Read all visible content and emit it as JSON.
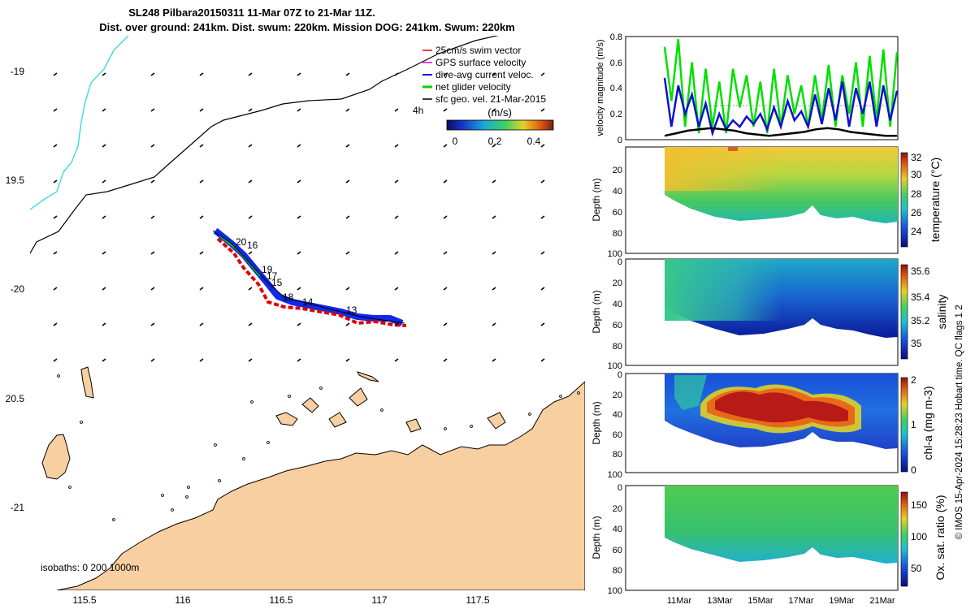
{
  "title_line1": "SL248 Pilbara20150311 11-Mar 07Z to 21-Mar 11Z.",
  "title_line2": "Dist. over ground: 241km. Dist. swum: 220km. Mission DOG: 241km. Swum: 220km",
  "credit": "© IMOS 15-Apr-2024 15:28:23 Hobart time. QC flags 1  2",
  "map": {
    "legend": [
      {
        "label": "25cm/s swim vector",
        "color": "#e00000"
      },
      {
        "label": "GPS surface velocity",
        "color": "#e000e0"
      },
      {
        "label": "dive-avg current veloc.",
        "color": "#0000e0"
      },
      {
        "label": "net glider velocity",
        "color": "#00d000"
      },
      {
        "label": "sfc geo. vel. 21-Mar-2015",
        "color": "#000000"
      }
    ],
    "colorbar": {
      "title": "(m/s)",
      "ticks": [
        "0",
        "0.2",
        "0.4"
      ]
    },
    "time_marker": "4h",
    "isobaths": "isobaths: 0   200  1000m",
    "lon_ticks": [
      "115.5",
      "116",
      "116.5",
      "117",
      "117.5"
    ],
    "lat_ticks": [
      "-19",
      "19.5",
      "-20",
      "20.5",
      "-21"
    ],
    "day_labels": [
      "20",
      "16",
      "19",
      "17",
      "15",
      "18",
      "14",
      "13"
    ],
    "land_color": "#f8cfa0"
  },
  "chart_data": [
    {
      "type": "line",
      "ylabel": "velocity magnitude (m/s)",
      "ylim": [
        0,
        0.8
      ],
      "yticks": [
        "0",
        "0.2",
        "0.4",
        "0.6",
        "0.8"
      ],
      "series": [
        {
          "color": "#00e000",
          "values": [
            0.72,
            0.3,
            0.78,
            0.1,
            0.6,
            0.05,
            0.55,
            0.1,
            0.45,
            0.05,
            0.55,
            0.25,
            0.5,
            0.1,
            0.45,
            0.05,
            0.55,
            0.1,
            0.5,
            0.2,
            0.42,
            0.1,
            0.5,
            0.15,
            0.58,
            0.1,
            0.5,
            0.2,
            0.6,
            0.1,
            0.65,
            0.15,
            0.7,
            0.1,
            0.68
          ]
        },
        {
          "color": "#1010d0",
          "values": [
            0.48,
            0.1,
            0.42,
            0.2,
            0.35,
            0.1,
            0.28,
            0.05,
            0.2,
            0.08,
            0.15,
            0.1,
            0.18,
            0.12,
            0.2,
            0.08,
            0.25,
            0.1,
            0.3,
            0.15,
            0.22,
            0.1,
            0.35,
            0.12,
            0.4,
            0.15,
            0.45,
            0.1,
            0.4,
            0.2,
            0.45,
            0.1,
            0.42,
            0.15,
            0.38
          ]
        },
        {
          "color": "#000000",
          "values": [
            0.03,
            0.05,
            0.07,
            0.08,
            0.09,
            0.08,
            0.07,
            0.05,
            0.04,
            0.03,
            0.04,
            0.05,
            0.06,
            0.08,
            0.09,
            0.08,
            0.06,
            0.05,
            0.04,
            0.03,
            0.03
          ]
        }
      ]
    },
    {
      "type": "heatmap",
      "ylabel": "Depth (m)",
      "clabel": "temperature (°C)",
      "yticks": [
        "20",
        "40",
        "60",
        "80",
        "100"
      ],
      "ctick_labels": [
        "32",
        "30",
        "28",
        "26",
        "24"
      ],
      "clim": [
        23,
        32
      ]
    },
    {
      "type": "heatmap",
      "ylabel": "Depth (m)",
      "clabel": "salinity",
      "yticks": [
        "0",
        "20",
        "40",
        "60",
        "80",
        "100"
      ],
      "ctick_labels": [
        "35.6",
        "35.4",
        "35.2",
        "35"
      ],
      "clim": [
        34.9,
        35.65
      ]
    },
    {
      "type": "heatmap",
      "ylabel": "Depth (m)",
      "clabel": "chl-a (mg m-3)",
      "yticks": [
        "0",
        "20",
        "40",
        "60",
        "80",
        "100"
      ],
      "ctick_labels": [
        "2",
        "1",
        "0"
      ],
      "clim": [
        0,
        2
      ]
    },
    {
      "type": "heatmap",
      "ylabel": "Depth (m)",
      "clabel": "Ox. sat. ratio (%)",
      "yticks": [
        "0",
        "20",
        "40",
        "60",
        "80",
        "100"
      ],
      "xticks": [
        "11Mar",
        "13Mar",
        "15Mar",
        "17Mar",
        "19Mar",
        "21Mar"
      ],
      "ctick_labels": [
        "150",
        "100",
        "50"
      ],
      "clim": [
        25,
        175
      ]
    }
  ]
}
